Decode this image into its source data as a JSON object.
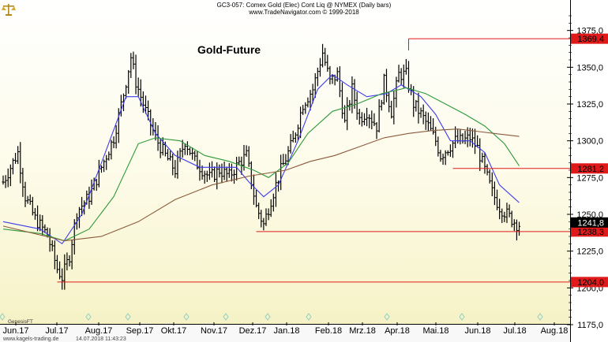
{
  "header": {
    "line1": "GC3-057:  Comex Gold (Elec) Cont Liq @ NYMEX  (Daily bars)",
    "line2": "www.TradeNavigator.com © 1999-2018"
  },
  "logo_icon": "scales-icon",
  "footer": {
    "left": "www.kagels-trading.de",
    "timestamp": "14.07.2018 11:43:23",
    "brand": "GenesisFT"
  },
  "colors": {
    "background": "#fbf9d8",
    "price_bars": "#000000",
    "ma_fast": "#3c3cf0",
    "ma_mid": "#2e9a3a",
    "ma_slow": "#8b5a3c",
    "level_lines": "#e01a1a",
    "level_box": "#e01a1a",
    "current_box": "#000000",
    "marker": "#8fd0c0"
  },
  "chart_data": {
    "type": "line",
    "title": "Gold-Future",
    "xlabel": "",
    "ylabel": "",
    "ylim": [
      1175,
      1385
    ],
    "y_ticks": [
      1175,
      1200,
      1225,
      1250,
      1275,
      1300,
      1325,
      1350,
      1375
    ],
    "y_tick_labels": [
      "1175,0",
      "1200,0",
      "1225,0",
      "1250,0",
      "1275,0",
      "1300,0",
      "1325,0",
      "1350,0",
      "1375,0"
    ],
    "x_labels": [
      "Jun.17",
      "Jul.17",
      "Aug.17",
      "Sep.17",
      "Okt.17",
      "Nov.17",
      "Dez.17",
      "Jan.18",
      "Feb.18",
      "Mrz.18",
      "Apr.18",
      "Mai.18",
      "Jun.18",
      "Jul.18",
      "Aug.18"
    ],
    "grid": false,
    "price_path": [
      [
        0,
        1272
      ],
      [
        6,
        1292
      ],
      [
        9,
        1262
      ],
      [
        13,
        1247
      ],
      [
        18,
        1236
      ],
      [
        22,
        1213
      ],
      [
        24,
        1207
      ],
      [
        27,
        1222
      ],
      [
        30,
        1252
      ],
      [
        35,
        1262
      ],
      [
        40,
        1282
      ],
      [
        45,
        1302
      ],
      [
        49,
        1332
      ],
      [
        52,
        1357
      ],
      [
        54,
        1340
      ],
      [
        58,
        1320
      ],
      [
        62,
        1302
      ],
      [
        66,
        1290
      ],
      [
        70,
        1280
      ],
      [
        74,
        1300
      ],
      [
        78,
        1286
      ],
      [
        84,
        1275
      ],
      [
        88,
        1280
      ],
      [
        92,
        1276
      ],
      [
        96,
        1285
      ],
      [
        99,
        1290
      ],
      [
        103,
        1255
      ],
      [
        106,
        1243
      ],
      [
        109,
        1260
      ],
      [
        113,
        1280
      ],
      [
        118,
        1300
      ],
      [
        122,
        1325
      ],
      [
        126,
        1335
      ],
      [
        130,
        1360
      ],
      [
        133,
        1340
      ],
      [
        136,
        1345
      ],
      [
        139,
        1312
      ],
      [
        142,
        1335
      ],
      [
        145,
        1315
      ],
      [
        148,
        1320
      ],
      [
        152,
        1310
      ],
      [
        155,
        1340
      ],
      [
        158,
        1320
      ],
      [
        161,
        1345
      ],
      [
        164,
        1345
      ],
      [
        167,
        1325
      ],
      [
        170,
        1318
      ],
      [
        173,
        1310
      ],
      [
        176,
        1300
      ],
      [
        178,
        1290
      ],
      [
        181,
        1295
      ],
      [
        184,
        1300
      ],
      [
        187,
        1300
      ],
      [
        190,
        1302
      ],
      [
        193,
        1295
      ],
      [
        196,
        1280
      ],
      [
        199,
        1265
      ],
      [
        202,
        1255
      ],
      [
        205,
        1250
      ],
      [
        208,
        1245
      ],
      [
        210,
        1241.8
      ]
    ],
    "series": [
      {
        "values": [
          [
            0,
            1245
          ],
          [
            15,
            1240
          ],
          [
            24,
            1230
          ],
          [
            32,
            1250
          ],
          [
            40,
            1285
          ],
          [
            50,
            1330
          ],
          [
            55,
            1330
          ],
          [
            62,
            1305
          ],
          [
            70,
            1290
          ],
          [
            80,
            1282
          ],
          [
            88,
            1282
          ],
          [
            95,
            1282
          ],
          [
            100,
            1272
          ],
          [
            106,
            1262
          ],
          [
            112,
            1270
          ],
          [
            120,
            1300
          ],
          [
            128,
            1335
          ],
          [
            134,
            1345
          ],
          [
            140,
            1338
          ],
          [
            148,
            1330
          ],
          [
            156,
            1332
          ],
          [
            162,
            1338
          ],
          [
            170,
            1330
          ],
          [
            176,
            1318
          ],
          [
            182,
            1300
          ],
          [
            190,
            1300
          ],
          [
            196,
            1292
          ],
          [
            202,
            1270
          ],
          [
            210,
            1258
          ]
        ]
      },
      {
        "values": [
          [
            0,
            1240
          ],
          [
            15,
            1237
          ],
          [
            25,
            1232
          ],
          [
            35,
            1240
          ],
          [
            45,
            1262
          ],
          [
            55,
            1298
          ],
          [
            62,
            1302
          ],
          [
            72,
            1300
          ],
          [
            82,
            1290
          ],
          [
            92,
            1286
          ],
          [
            102,
            1280
          ],
          [
            108,
            1275
          ],
          [
            116,
            1285
          ],
          [
            124,
            1305
          ],
          [
            134,
            1320
          ],
          [
            144,
            1325
          ],
          [
            154,
            1332
          ],
          [
            164,
            1336
          ],
          [
            172,
            1332
          ],
          [
            180,
            1325
          ],
          [
            188,
            1318
          ],
          [
            196,
            1310
          ],
          [
            204,
            1298
          ],
          [
            210,
            1283
          ]
        ]
      },
      {
        "values": [
          [
            0,
            1242
          ],
          [
            15,
            1236
          ],
          [
            25,
            1232
          ],
          [
            40,
            1235
          ],
          [
            55,
            1245
          ],
          [
            70,
            1260
          ],
          [
            85,
            1270
          ],
          [
            100,
            1276
          ],
          [
            115,
            1280
          ],
          [
            125,
            1286
          ],
          [
            135,
            1290
          ],
          [
            145,
            1296
          ],
          [
            155,
            1302
          ],
          [
            165,
            1305
          ],
          [
            175,
            1307
          ],
          [
            185,
            1308
          ],
          [
            195,
            1306
          ],
          [
            210,
            1303
          ]
        ]
      }
    ],
    "levels": [
      {
        "value": 1369.4,
        "label": "1369,4",
        "x_start": 165
      },
      {
        "value": 1281.2,
        "label": "1281,2",
        "x_start": 183
      },
      {
        "value": 1238.3,
        "label": "1238,3",
        "x_start": 103
      },
      {
        "value": 1204.0,
        "label": "1204,0",
        "x_start": 22
      }
    ],
    "current": {
      "value": 1241.8,
      "label": "1241,8"
    }
  }
}
